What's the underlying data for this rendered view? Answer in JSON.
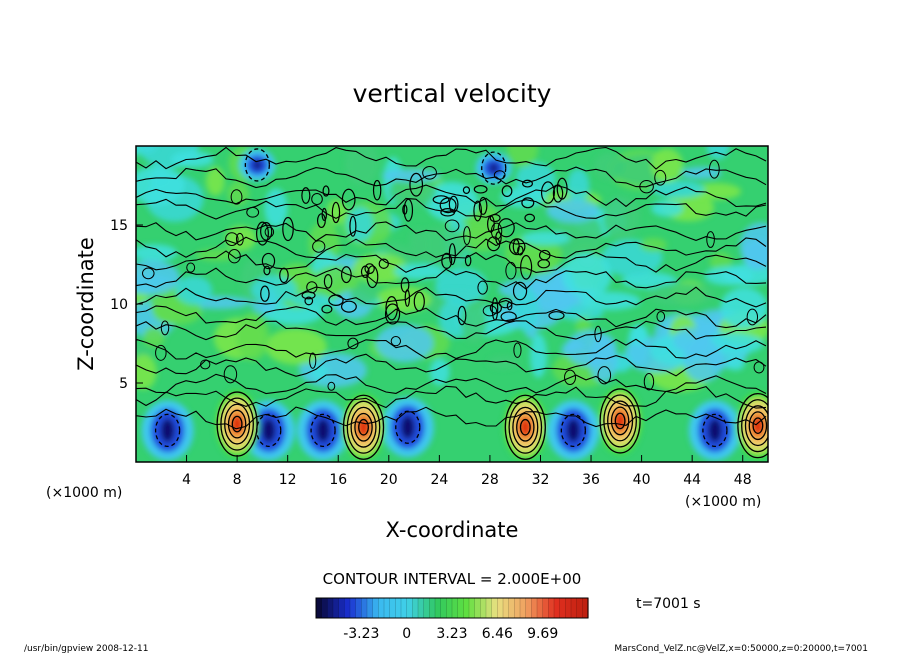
{
  "chart_data": {
    "type": "heatmap",
    "title": "vertical velocity",
    "xlabel": "X-coordinate",
    "ylabel": "Z-coordinate",
    "x_unit": "(×1000 m)",
    "y_unit": "(×1000 m)",
    "xlim": [
      0,
      50
    ],
    "ylim": [
      0,
      20
    ],
    "x_ticks": [
      4,
      8,
      12,
      16,
      20,
      24,
      28,
      32,
      36,
      40,
      44,
      48
    ],
    "y_ticks": [
      5,
      10,
      15
    ],
    "contour_interval": "CONTOUR INTERVAL = 2.000E+00",
    "time": "t=7001 s",
    "colorbar": {
      "range": [
        -6.46,
        12.92
      ],
      "tick_labels": [
        "-3.23",
        "0",
        "3.23",
        "6.46",
        "9.69"
      ],
      "tick_values": [
        -3.23,
        0,
        3.23,
        6.46,
        9.69
      ],
      "colors": [
        "#0a0a3c",
        "#1a2fd0",
        "#3ab8f0",
        "#40d0e8",
        "#30c860",
        "#60e040",
        "#e8e080",
        "#f0a060",
        "#e03020",
        "#c02010"
      ]
    },
    "updraft_centers": [
      {
        "x": 8,
        "z": 2.4,
        "peak": 9.69
      },
      {
        "x": 18,
        "z": 2.2,
        "peak": 9.69
      },
      {
        "x": 30.8,
        "z": 2.2,
        "peak": 9.0
      },
      {
        "x": 38.3,
        "z": 2.6,
        "peak": 8.5
      },
      {
        "x": 49.2,
        "z": 2.3,
        "peak": 8.5
      }
    ],
    "downdraft_centers": [
      {
        "x": 2.5,
        "z": 2.0
      },
      {
        "x": 10.5,
        "z": 2.0
      },
      {
        "x": 14.8,
        "z": 2.0
      },
      {
        "x": 21.5,
        "z": 2.2
      },
      {
        "x": 34.6,
        "z": 2.0
      },
      {
        "x": 45.8,
        "z": 2.0
      },
      {
        "x": 9.6,
        "z": 18.8
      },
      {
        "x": 28.3,
        "z": 18.6
      }
    ]
  },
  "footer": {
    "left": "/usr/bin/gpview 2008-12-11",
    "right": "MarsCond_VelZ.nc@VelZ,x=0:50000,z=0:20000,t=7001"
  }
}
